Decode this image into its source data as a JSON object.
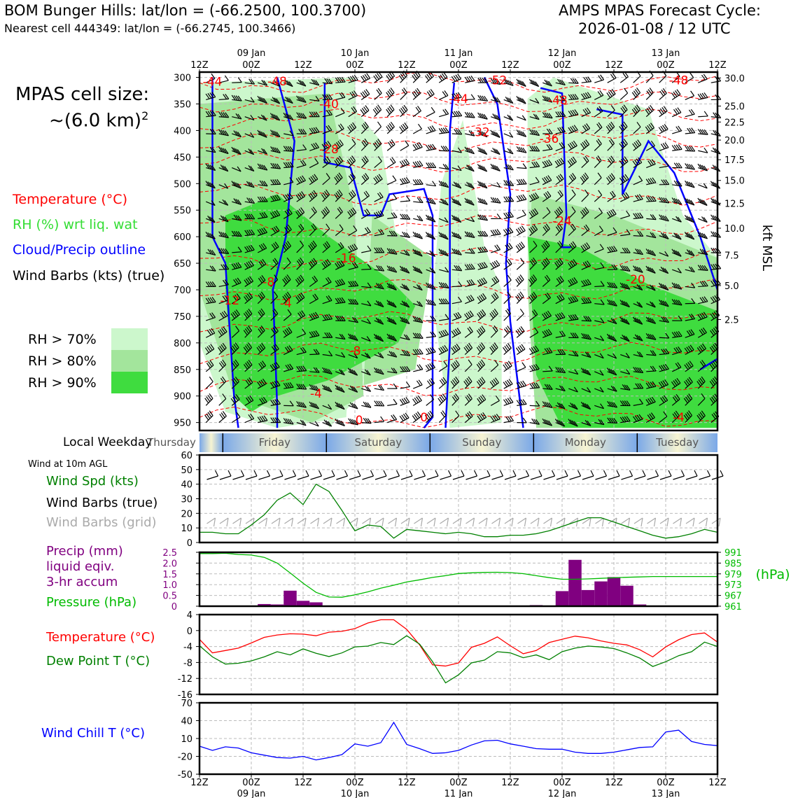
{
  "header": {
    "location_line": "BOM Bunger Hills: lat/lon = (-66.2500, 100.3700)",
    "cell_line": "Nearest cell 444349: lat/lon = (-66.2745, 100.3466)",
    "cycle_line1": "AMPS MPAS Forecast Cycle:",
    "cycle_line2": "2026-01-08 / 12 UTC"
  },
  "cell_size": {
    "line1": "MPAS cell size:",
    "line2_prefix": "~(6.0 km)",
    "line2_sup": "2"
  },
  "legend": {
    "temperature": "Temperature (°C)",
    "rh": "RH (%) wrt liq. wat",
    "cloud": "Cloud/Precip outline",
    "barbs": "Wind Barbs (kts) (true)",
    "rh70": "RH > 70%",
    "rh80": "RH > 80%",
    "rh90": "RH > 90%"
  },
  "colors": {
    "rh70": "#ccf7cc",
    "rh80": "#a3e59c",
    "rh90": "#3fdc3f",
    "temperature": "#ff0000",
    "cloud_outline": "#0000ff",
    "wind_speed": "#008000",
    "precip": "#800080",
    "pressure": "#00bb00",
    "dewpoint": "#008000",
    "windchill": "#0000ff",
    "barb_grid": "#aaaaaa"
  },
  "weekday_label": "Local Weekday",
  "weekdays": [
    "Thursday",
    "Friday",
    "Saturday",
    "Sunday",
    "Monday",
    "Tuesday"
  ],
  "wind10m_label": "Wind at 10m AGL",
  "wind_labels": {
    "spd": "Wind Spd (kts)",
    "barbs_true": "Wind Barbs (true)",
    "barbs_grid": "Wind Barbs (grid)"
  },
  "precip_labels": {
    "line1": "Precip (mm)",
    "line2": "liquid eqiv.",
    "line3": "3-hr accum",
    "pressure": "Pressure (hPa)"
  },
  "temp_labels": {
    "temp": "Temperature (°C)",
    "dew": "Dew Point T (°C)"
  },
  "chill_label": "Wind Chill T (°C)",
  "chart_data": [
    {
      "type": "heatmap",
      "name": "time-height cross section",
      "x_ticks_top": [
        "12Z",
        "00Z",
        "12Z",
        "00Z",
        "12Z",
        "00Z",
        "12Z",
        "00Z",
        "12Z",
        "00Z",
        "12Z"
      ],
      "x_dates": [
        "09 Jan",
        "10 Jan",
        "11 Jan",
        "12 Jan",
        "13 Jan"
      ],
      "x_hours": [
        0,
        12,
        24,
        36,
        48,
        60,
        72,
        84,
        96,
        108,
        120
      ],
      "ylabel_right": "kft MSL",
      "y_pressure_ticks": [
        300,
        350,
        400,
        450,
        500,
        550,
        600,
        650,
        700,
        750,
        800,
        850,
        900,
        950
      ],
      "y_kft_ticks": [
        "30.0",
        "25.0",
        "22.5",
        "20.0",
        "17.5",
        "15.0",
        "12.5",
        "10.0",
        "7.5",
        "5.0",
        "2.5"
      ],
      "y_kft_at_pressure": [
        301,
        354,
        384,
        418,
        455,
        494,
        537,
        584,
        635,
        692,
        756,
        828
      ],
      "temperature_contour_labels": [
        {
          "label": "-44",
          "t": 3,
          "p": 308
        },
        {
          "label": "-48",
          "t": 18,
          "p": 307
        },
        {
          "label": "-40",
          "t": 30,
          "p": 350
        },
        {
          "label": "-52",
          "t": 69,
          "p": 305
        },
        {
          "label": "-44",
          "t": 60,
          "p": 340
        },
        {
          "label": "-48",
          "t": 83,
          "p": 343
        },
        {
          "label": "-48",
          "t": 111,
          "p": 305
        },
        {
          "label": "-32",
          "t": 65,
          "p": 403
        },
        {
          "label": "-36",
          "t": 81,
          "p": 415
        },
        {
          "label": "-28",
          "t": 30,
          "p": 435
        },
        {
          "label": "-24",
          "t": 84,
          "p": 570
        },
        {
          "label": "-16",
          "t": 34,
          "p": 640
        },
        {
          "label": "-20",
          "t": 101,
          "p": 680
        },
        {
          "label": "-12",
          "t": 7,
          "p": 720
        },
        {
          "label": "-8",
          "t": 16,
          "p": 685
        },
        {
          "label": "-4",
          "t": 20,
          "p": 725
        },
        {
          "label": "-8",
          "t": 36,
          "p": 815
        },
        {
          "label": "-4",
          "t": 27,
          "p": 895
        },
        {
          "label": "0",
          "t": 37,
          "p": 945
        },
        {
          "label": "0",
          "t": 52,
          "p": 940
        },
        {
          "label": "-4",
          "t": 111,
          "p": 940
        }
      ]
    },
    {
      "type": "line",
      "name": "wind speed 10m",
      "ylim": [
        0,
        60
      ],
      "yticks": [
        0,
        10,
        20,
        30,
        40,
        50,
        60
      ],
      "x_hours": [
        0,
        3,
        6,
        9,
        12,
        15,
        18,
        21,
        24,
        27,
        30,
        33,
        36,
        39,
        42,
        45,
        48,
        51,
        54,
        57,
        60,
        63,
        66,
        69,
        72,
        75,
        78,
        81,
        84,
        87,
        90,
        93,
        96,
        99,
        102,
        105,
        108,
        111,
        114,
        117,
        120
      ],
      "series": [
        {
          "values": [
            7,
            7,
            6,
            6,
            12,
            19,
            29,
            34,
            26,
            40,
            35,
            22,
            8,
            12,
            11,
            3,
            9,
            8,
            7,
            6,
            7,
            6,
            4,
            4,
            5,
            5,
            6,
            8,
            11,
            14,
            17,
            17,
            14,
            11,
            8,
            5,
            3,
            4,
            6,
            9,
            7
          ]
        }
      ]
    },
    {
      "type": "bar",
      "name": "precip 3-hr and pressure",
      "ylim": [
        0,
        2.5
      ],
      "yticks": [
        0,
        0.5,
        1.0,
        1.5,
        2.0,
        2.5
      ],
      "y2_ticks": [
        961,
        967,
        973,
        979,
        985,
        991
      ],
      "y2_label": "(hPa)",
      "x_hours": [
        0,
        3,
        6,
        9,
        12,
        15,
        18,
        21,
        24,
        27,
        30,
        33,
        36,
        39,
        42,
        45,
        48,
        51,
        54,
        57,
        60,
        63,
        66,
        69,
        72,
        75,
        78,
        81,
        84,
        87,
        90,
        93,
        96,
        99,
        102,
        105,
        108,
        111,
        114,
        117,
        120
      ],
      "series": [
        {
          "values": [
            0,
            0,
            0,
            0,
            0,
            0.1,
            0.08,
            0.72,
            0.25,
            0.18,
            0.02,
            0,
            0,
            0,
            0,
            0,
            0,
            0,
            0,
            0,
            0,
            0,
            0,
            0,
            0,
            0,
            0.05,
            0,
            0.7,
            2.15,
            0.75,
            1.15,
            1.35,
            0.95,
            0.08,
            0,
            0,
            0,
            0,
            0,
            0
          ]
        },
        {
          "values": [
            990.3,
            990.3,
            990.5,
            989.8,
            989.5,
            988.2,
            985.0,
            979.5,
            973.8,
            968.7,
            966.1,
            966.0,
            967.3,
            969.0,
            971.0,
            972.7,
            974.5,
            975.7,
            977.0,
            978.0,
            979.2,
            979.6,
            979.8,
            979.9,
            979.7,
            979.1,
            978.0,
            976.9,
            976.0,
            976.0,
            976.2,
            976.5,
            976.8,
            977.1,
            977.3,
            977.5,
            977.5,
            977.5,
            977.5,
            977.5,
            977.5
          ]
        }
      ]
    },
    {
      "type": "line",
      "name": "temperature and dew point",
      "ylim": [
        -16,
        4
      ],
      "yticks": [
        -16,
        -12,
        -8,
        -4,
        0,
        4
      ],
      "x_hours": [
        0,
        3,
        6,
        9,
        12,
        15,
        18,
        21,
        24,
        27,
        30,
        33,
        36,
        39,
        42,
        45,
        48,
        51,
        54,
        57,
        60,
        63,
        66,
        69,
        72,
        75,
        78,
        81,
        84,
        87,
        90,
        93,
        96,
        99,
        102,
        105,
        108,
        111,
        114,
        117,
        120
      ],
      "series": [
        {
          "values": [
            -2.2,
            -5.6,
            -5.0,
            -4.4,
            -3.1,
            -1.7,
            -1.1,
            -0.8,
            -0.9,
            -1.3,
            -0.4,
            -0.2,
            0.5,
            1.9,
            2.7,
            2.7,
            0.3,
            -3.6,
            -8.6,
            -8.9,
            -8.1,
            -4.2,
            -3.2,
            -1.6,
            -3.8,
            -5.8,
            -5.0,
            -3.0,
            -2.2,
            -1.4,
            -1.8,
            -2.6,
            -3.2,
            -3.6,
            -4.8,
            -6.6,
            -4.1,
            -2.3,
            -1.0,
            -0.6,
            -2.9
          ]
        },
        {
          "values": [
            -3.8,
            -6.6,
            -8.4,
            -8.2,
            -7.6,
            -6.6,
            -5.3,
            -6.1,
            -4.6,
            -5.7,
            -6.5,
            -5.6,
            -4.1,
            -3.9,
            -3.0,
            -3.5,
            -1.3,
            -3.4,
            -7.8,
            -13.1,
            -11.1,
            -8.1,
            -7.4,
            -5.3,
            -5.6,
            -6.8,
            -6.1,
            -7.3,
            -5.3,
            -4.4,
            -3.9,
            -4.1,
            -4.5,
            -5.6,
            -6.9,
            -9.0,
            -7.8,
            -6.3,
            -5.3,
            -2.9,
            -4.0
          ]
        }
      ]
    },
    {
      "type": "line",
      "name": "wind chill",
      "ylim": [
        -50,
        70
      ],
      "yticks": [
        -50,
        -20,
        10,
        40,
        70
      ],
      "x_hours": [
        0,
        3,
        6,
        9,
        12,
        15,
        18,
        21,
        24,
        27,
        30,
        33,
        36,
        39,
        42,
        45,
        48,
        51,
        54,
        57,
        60,
        63,
        66,
        69,
        72,
        75,
        78,
        81,
        84,
        87,
        90,
        93,
        96,
        99,
        102,
        105,
        108,
        111,
        114,
        117,
        120
      ],
      "series": [
        {
          "values": [
            -3,
            -10,
            -4,
            -6,
            -14,
            -18,
            -22,
            -23,
            -20,
            -26,
            -22,
            -17,
            1,
            -3,
            3,
            37,
            0,
            -7,
            -15,
            -14,
            -10,
            -1,
            6,
            7,
            1,
            -3,
            -7,
            -8,
            -8,
            -13,
            -15,
            -15,
            -13,
            -9,
            -5,
            -4,
            21,
            24,
            5,
            0,
            -2
          ]
        }
      ]
    }
  ]
}
